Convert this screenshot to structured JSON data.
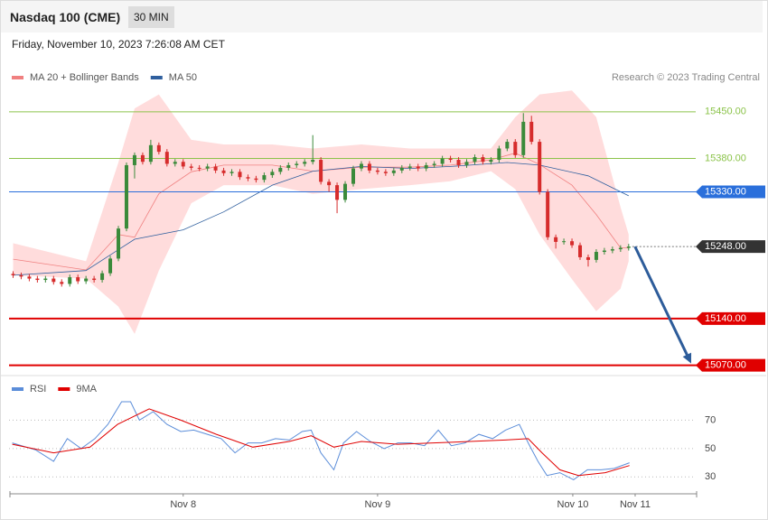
{
  "header": {
    "title": "Nasdaq 100 (CME)",
    "interval": "30 MIN",
    "date": "Friday, November 10, 2023 7:26:08 AM CET"
  },
  "chart_data": [
    {
      "type": "candlestick",
      "credit": "Research © 2023 Trading Central",
      "xlim": [
        2.5,
        87.5
      ],
      "ylim": [
        15056,
        15489
      ],
      "up_color": "#3a8a3a",
      "down_color": "#d62c2c",
      "x": [
        3,
        4,
        5,
        6,
        7,
        8,
        9,
        10,
        11,
        12,
        13,
        14,
        15,
        16,
        17,
        18,
        19,
        20,
        21,
        22,
        23,
        24,
        25,
        26,
        27,
        28,
        29,
        30,
        31,
        32,
        33,
        34,
        35,
        36,
        37,
        38,
        39,
        40,
        41,
        42,
        43,
        44,
        45,
        46,
        47,
        48,
        49,
        50,
        51,
        52,
        53,
        54,
        55,
        56,
        57,
        58,
        59,
        60,
        61,
        62,
        63,
        64,
        65,
        66,
        67,
        68,
        69,
        70,
        71,
        72,
        73,
        74,
        75,
        76,
        77,
        78,
        79
      ],
      "open": [
        15207,
        15205,
        15203,
        15200,
        15198,
        15200,
        15195,
        15192,
        15202,
        15196,
        15200,
        15198,
        15208,
        15230,
        15275,
        15370,
        15385,
        15375,
        15400,
        15390,
        15372,
        15375,
        15368,
        15366,
        15365,
        15368,
        15362,
        15358,
        15360,
        15352,
        15350,
        15348,
        15355,
        15360,
        15366,
        15370,
        15372,
        15375,
        15378,
        15345,
        15340,
        15318,
        15342,
        15365,
        15372,
        15362,
        15360,
        15358,
        15362,
        15366,
        15368,
        15365,
        15370,
        15372,
        15380,
        15378,
        15370,
        15375,
        15382,
        15375,
        15378,
        15395,
        15405,
        15385,
        15435,
        15405,
        15330,
        15262,
        15255,
        15256,
        15250,
        15232,
        15228,
        15240,
        15242,
        15244,
        15246
      ],
      "high": [
        15211,
        15209,
        15207,
        15204,
        15204,
        15204,
        15199,
        15206,
        15206,
        15204,
        15204,
        15212,
        15234,
        15279,
        15374,
        15389,
        15389,
        15408,
        15404,
        15394,
        15379,
        15379,
        15372,
        15370,
        15372,
        15372,
        15366,
        15364,
        15364,
        15356,
        15354,
        15359,
        15364,
        15370,
        15374,
        15376,
        15379,
        15415,
        15382,
        15349,
        15344,
        15346,
        15369,
        15376,
        15376,
        15366,
        15364,
        15366,
        15370,
        15372,
        15372,
        15374,
        15376,
        15384,
        15384,
        15382,
        15379,
        15386,
        15386,
        15382,
        15399,
        15409,
        15409,
        15448,
        15444,
        15409,
        15334,
        15266,
        15260,
        15260,
        15254,
        15236,
        15244,
        15246,
        15248,
        15250,
        15252
      ],
      "low": [
        15201,
        15199,
        15196,
        15194,
        15194,
        15191,
        15188,
        15188,
        15192,
        15192,
        15194,
        15194,
        15204,
        15226,
        15271,
        15350,
        15371,
        15371,
        15386,
        15368,
        15368,
        15364,
        15362,
        15361,
        15361,
        15358,
        15354,
        15354,
        15348,
        15346,
        15344,
        15344,
        15351,
        15356,
        15362,
        15366,
        15368,
        15371,
        15341,
        15330,
        15298,
        15314,
        15338,
        15361,
        15358,
        15356,
        15354,
        15354,
        15358,
        15362,
        15361,
        15361,
        15366,
        15368,
        15374,
        15366,
        15366,
        15371,
        15371,
        15371,
        15374,
        15391,
        15381,
        15381,
        15401,
        15326,
        15258,
        15245,
        15251,
        15246,
        15228,
        15218,
        15224,
        15236,
        15238,
        15240,
        15242
      ],
      "close": [
        15205,
        15203,
        15200,
        15198,
        15200,
        15195,
        15192,
        15202,
        15196,
        15200,
        15198,
        15208,
        15230,
        15275,
        15370,
        15385,
        15375,
        15400,
        15390,
        15372,
        15375,
        15368,
        15366,
        15365,
        15368,
        15362,
        15358,
        15360,
        15352,
        15350,
        15348,
        15355,
        15360,
        15366,
        15370,
        15372,
        15375,
        15378,
        15345,
        15340,
        15318,
        15342,
        15365,
        15372,
        15362,
        15360,
        15358,
        15362,
        15366,
        15368,
        15365,
        15370,
        15372,
        15380,
        15378,
        15370,
        15375,
        15382,
        15375,
        15378,
        15395,
        15405,
        15385,
        15435,
        15405,
        15330,
        15262,
        15255,
        15256,
        15250,
        15232,
        15228,
        15240,
        15242,
        15244,
        15246,
        15248
      ],
      "series": [
        {
          "name": "MA 20 + Bollinger Bands",
          "color": "#f08080",
          "band_color": "#ffdcdc",
          "x": [
            3,
            12,
            16,
            18,
            21,
            25,
            29,
            35,
            40,
            46,
            52,
            57,
            62,
            65,
            68,
            72,
            75,
            78,
            79
          ],
          "values": [
            15229,
            15213,
            15266,
            15262,
            15327,
            15360,
            15370,
            15370,
            15361,
            15367,
            15367,
            15370,
            15378,
            15388,
            15371,
            15340,
            15296,
            15246,
            15246
          ],
          "upper": [
            15253,
            15226,
            15374,
            15455,
            15476,
            15408,
            15401,
            15401,
            15395,
            15401,
            15395,
            15395,
            15395,
            15442,
            15476,
            15482,
            15442,
            15307,
            15266
          ],
          "lower": [
            15205,
            15200,
            15158,
            15117,
            15212,
            15313,
            15340,
            15340,
            15327,
            15334,
            15340,
            15346,
            15361,
            15334,
            15266,
            15199,
            15151,
            15185,
            15226
          ]
        },
        {
          "name": "MA 50",
          "color": "#2f5f9e",
          "x": [
            3,
            12,
            18,
            24,
            29,
            35,
            40,
            46,
            52,
            57,
            64,
            68,
            74,
            79
          ],
          "values": [
            15205,
            15212,
            15259,
            15273,
            15300,
            15340,
            15361,
            15368,
            15365,
            15368,
            15374,
            15370,
            15354,
            15324
          ]
        }
      ],
      "levels": [
        {
          "value": 15450,
          "label": "15450.00",
          "color": "#8bc34a",
          "style": "plain"
        },
        {
          "value": 15380,
          "label": "15380.00",
          "color": "#8bc34a",
          "style": "plain"
        },
        {
          "value": 15330,
          "label": "15330.00",
          "color": "#2a6fdb",
          "style": "box"
        },
        {
          "value": 15248,
          "label": "15248.00",
          "color": "#333333",
          "style": "marker"
        },
        {
          "value": 15140,
          "label": "15140.00",
          "color": "#e00000",
          "style": "support"
        },
        {
          "value": 15070,
          "label": "15070.00",
          "color": "#e00000",
          "style": "support"
        }
      ]
    },
    {
      "type": "line",
      "xlim": [
        2.5,
        87.5
      ],
      "ylim": [
        20,
        90
      ],
      "yticks": [
        30,
        50,
        70
      ],
      "xticks": [
        {
          "value": 24,
          "label": "Nov 8"
        },
        {
          "value": 48,
          "label": "Nov 9"
        },
        {
          "value": 72.1,
          "label": "Nov 10"
        },
        {
          "value": 79.8,
          "label": "Nov 11"
        }
      ],
      "series": [
        {
          "name": "RSI",
          "color": "#5b8dd9",
          "x": [
            2.9,
            5.8,
            8.0,
            9.7,
            11.4,
            13.1,
            14.7,
            16.4,
            17.5,
            18.6,
            20.3,
            22.0,
            23.7,
            25.3,
            27.0,
            28.7,
            30.4,
            32.0,
            33.7,
            35.4,
            37.1,
            38.7,
            39.8,
            41.0,
            42.6,
            43.8,
            45.4,
            47.1,
            48.8,
            50.5,
            52.1,
            53.8,
            55.5,
            57.1,
            58.8,
            60.5,
            62.2,
            63.8,
            65.5,
            66.6,
            67.8,
            68.9,
            70.5,
            72.2,
            73.9,
            75.6,
            77.2,
            79.1
          ],
          "values": [
            54,
            49,
            41,
            57,
            50,
            57,
            67,
            83,
            83,
            70,
            76,
            67,
            62,
            63,
            60,
            57,
            47,
            54,
            54,
            57,
            56,
            62,
            63,
            47,
            35,
            54,
            62,
            55,
            50,
            54,
            54,
            52,
            63,
            52,
            54,
            60,
            57,
            63,
            67,
            54,
            41,
            31,
            33,
            28,
            35,
            35,
            36,
            40
          ]
        },
        {
          "name": "9MA",
          "color": "#e00000",
          "x": [
            2.9,
            8.0,
            12.5,
            15.9,
            19.8,
            23.7,
            28.1,
            32.6,
            37.1,
            39.8,
            42.6,
            46.0,
            50.5,
            54.9,
            59.4,
            63.8,
            66.6,
            68.3,
            70.5,
            72.8,
            76.1,
            79.1
          ],
          "values": [
            53,
            47,
            51,
            67,
            78,
            70,
            60,
            51,
            55,
            59,
            51,
            55,
            53,
            54,
            55,
            56,
            57,
            47,
            35,
            31,
            33,
            38
          ]
        }
      ]
    }
  ]
}
